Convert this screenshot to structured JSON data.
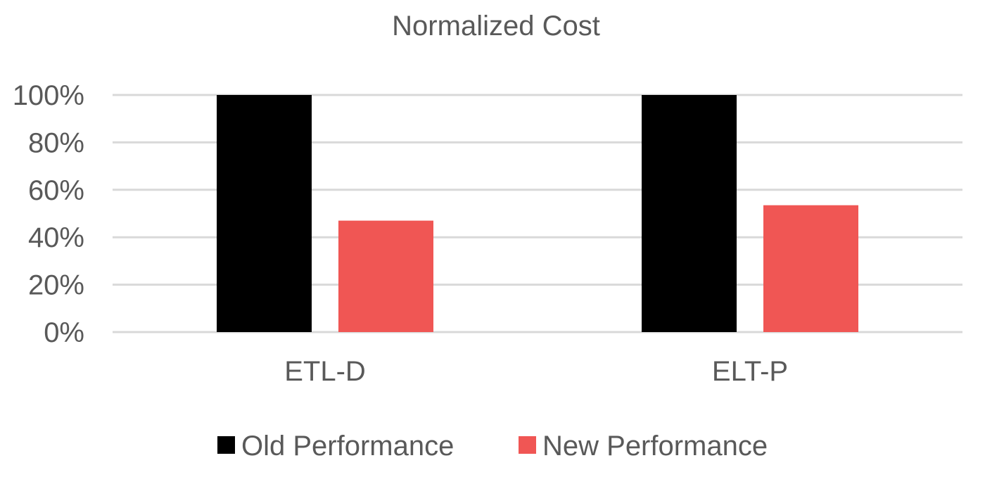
{
  "chart_data": {
    "type": "bar",
    "title": "Normalized Cost",
    "categories": [
      "ETL-D",
      "ELT-P"
    ],
    "series": [
      {
        "name": "Old Performance",
        "values": [
          100,
          100
        ],
        "color": "#000000"
      },
      {
        "name": "New Performance",
        "values": [
          47,
          53.5
        ],
        "color": "#f05654"
      }
    ],
    "y_ticks": [
      {
        "value": 0,
        "label": "0%"
      },
      {
        "value": 20,
        "label": "20%"
      },
      {
        "value": 40,
        "label": "40%"
      },
      {
        "value": 60,
        "label": "60%"
      },
      {
        "value": 80,
        "label": "80%"
      },
      {
        "value": 100,
        "label": "100%"
      }
    ],
    "ylim": [
      0,
      100
    ],
    "xlabel": "",
    "ylabel": "",
    "grid": true,
    "legend_position": "bottom-center"
  }
}
